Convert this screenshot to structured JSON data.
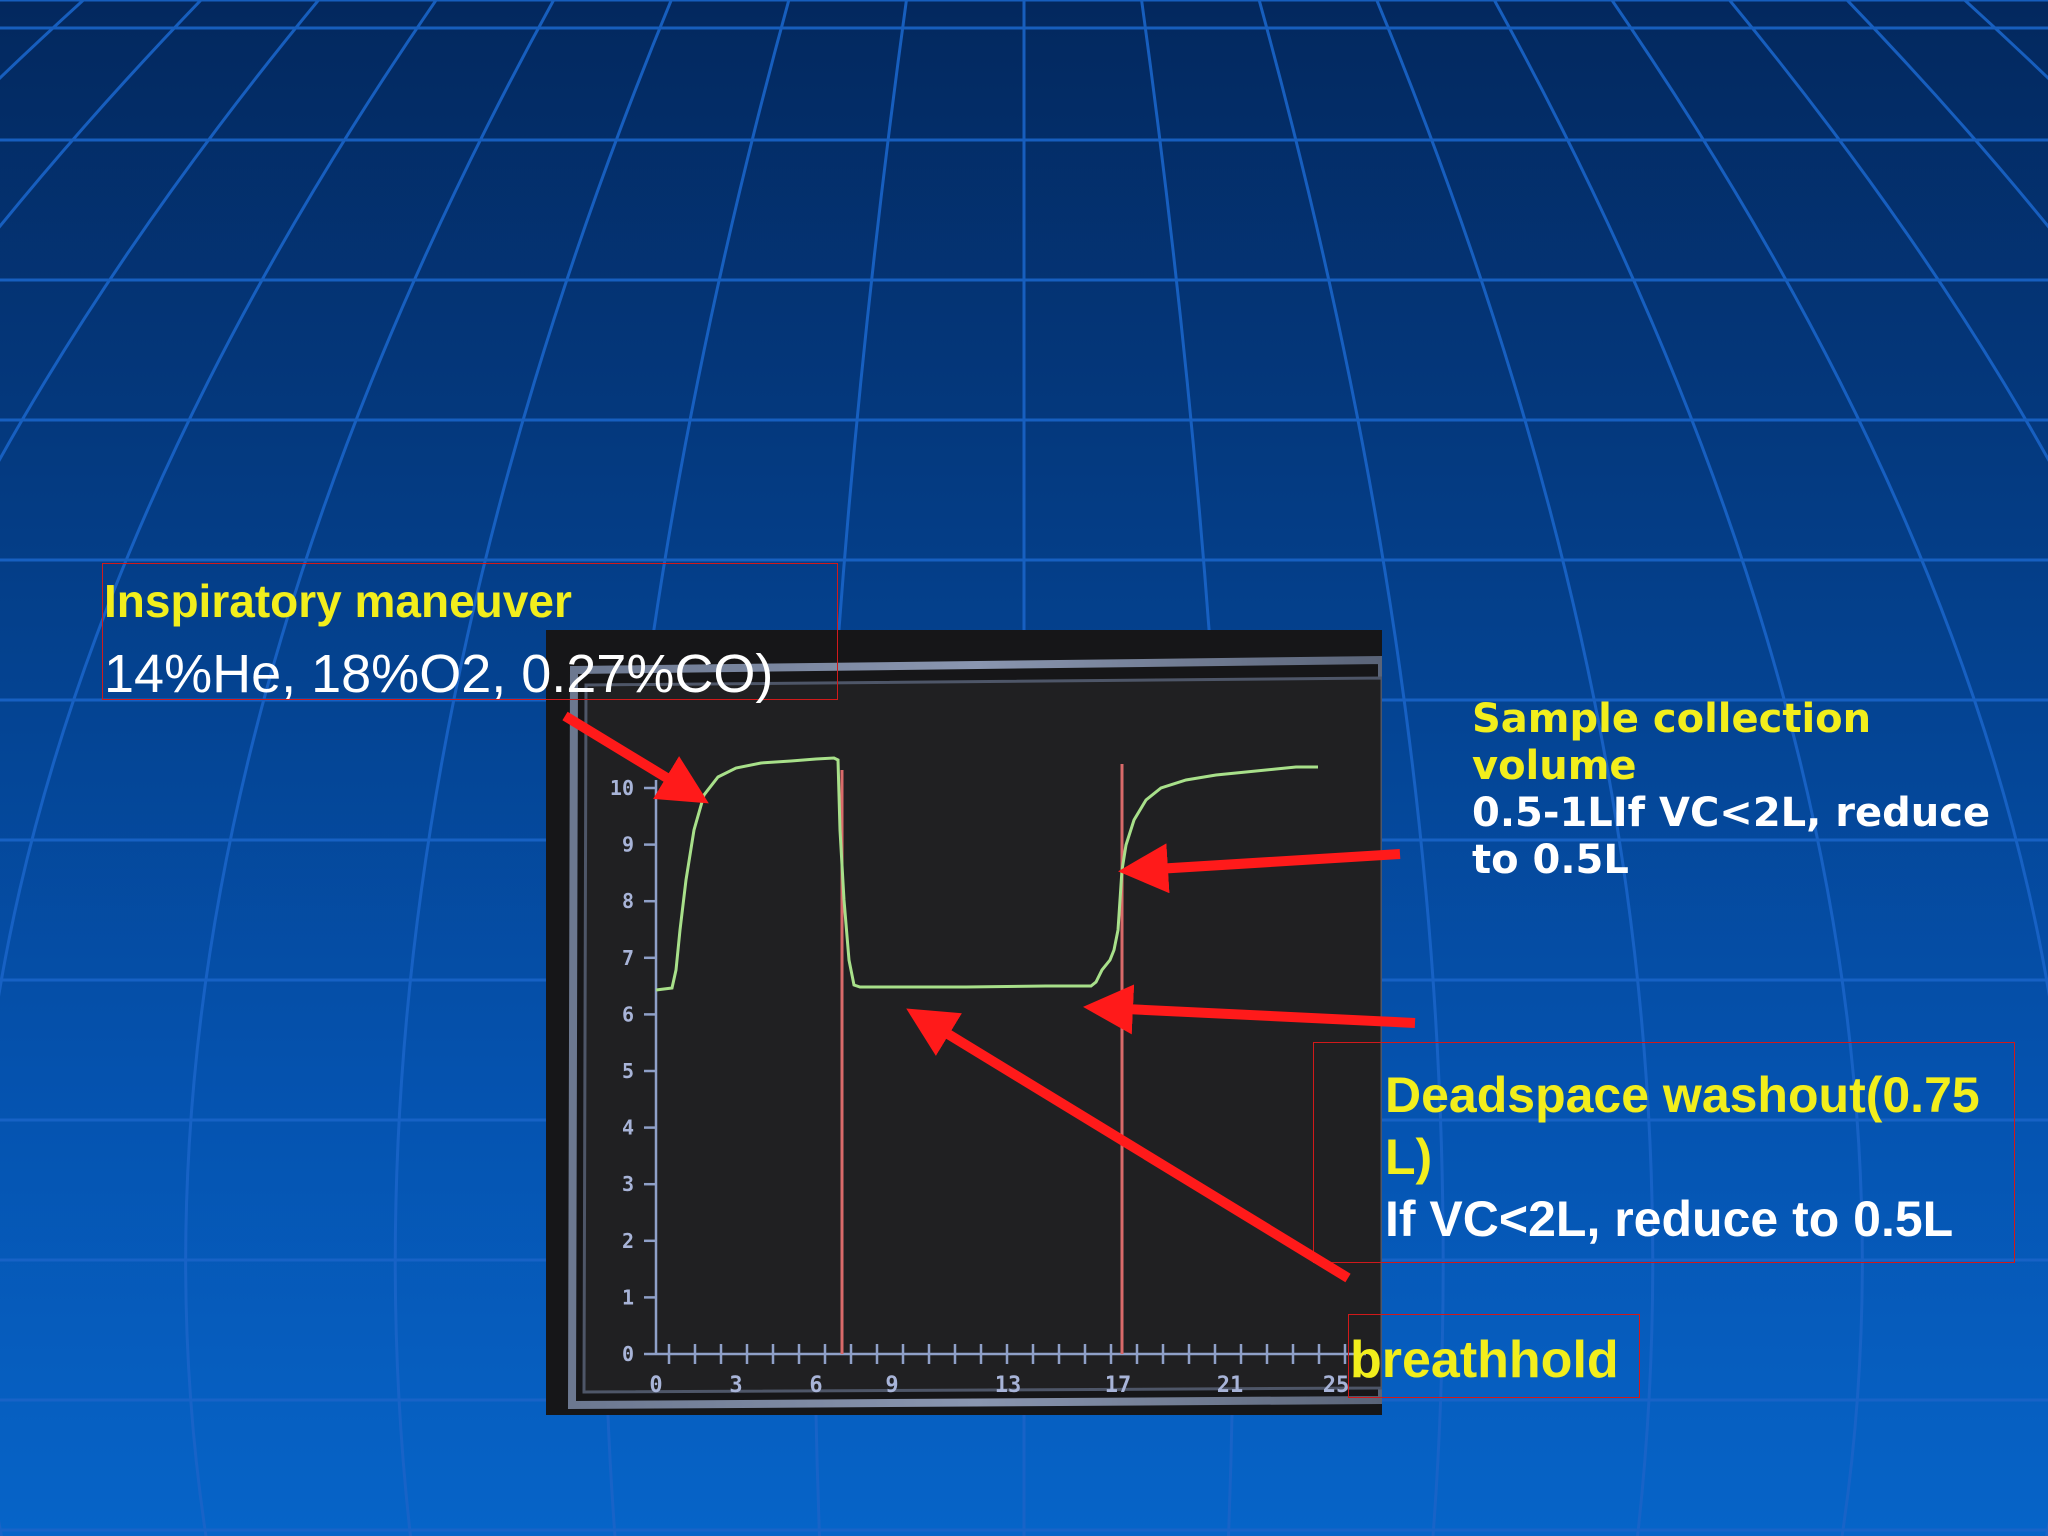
{
  "colors": {
    "background_top": "#03285e",
    "background_bottom": "#0664c8",
    "grid_line": "#1a64c8",
    "label_yellow": "#f2ee1c",
    "label_white": "#ffffff",
    "arrow_red": "#ff1a1a",
    "trace_green": "#a8e08a",
    "marker_red": "#d96a6a"
  },
  "labels": {
    "inspiratory_title": "Inspiratory maneuver",
    "inspiratory_gas": "14%He, 18%O2, 0.27%CO)",
    "sample_line1": "Sample collection",
    "sample_line2": "volume",
    "sample_line3": "0.5-1LIf VC<2L, reduce",
    "sample_line4": "to 0.5L",
    "deadspace_line1": "Deadspace washout(0.75",
    "deadspace_line2": "L)",
    "deadspace_line3": "If VC<2L, reduce to 0.5L",
    "breathhold": "breathhold"
  },
  "chart_data": {
    "type": "line",
    "y_ticks": [
      "0",
      "1",
      "2",
      "3",
      "4",
      "5",
      "6",
      "7",
      "8",
      "9",
      "10"
    ],
    "x_ticks": [
      "0",
      "3",
      "6",
      "9",
      "13",
      "17",
      "21",
      "25"
    ]
  }
}
